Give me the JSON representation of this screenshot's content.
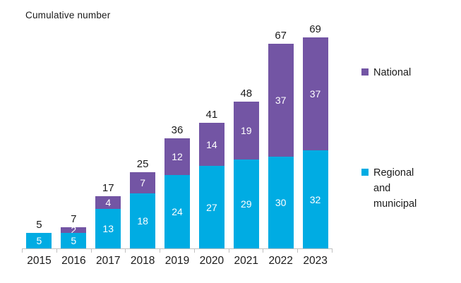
{
  "title": "Cumulative number",
  "colors": {
    "national": "#7355a4",
    "regional": "#00ace3",
    "axis": "#c0c0c0",
    "bar_label": "#ffffff",
    "text": "#1a1a1a"
  },
  "legend": [
    {
      "label": "National",
      "color_key": "national"
    },
    {
      "label": "Regional and municipal",
      "color_key": "regional"
    }
  ],
  "chart_data": {
    "type": "bar",
    "stacked": true,
    "title": "Cumulative number",
    "categories": [
      "2015",
      "2016",
      "2017",
      "2018",
      "2019",
      "2020",
      "2021",
      "2022",
      "2023"
    ],
    "series": [
      {
        "name": "Regional and municipal",
        "color_key": "regional",
        "values": [
          5,
          5,
          13,
          18,
          24,
          27,
          29,
          30,
          32
        ]
      },
      {
        "name": "National",
        "color_key": "national",
        "values": [
          0,
          2,
          4,
          7,
          12,
          14,
          19,
          37,
          37
        ]
      }
    ],
    "totals": [
      5,
      7,
      17,
      25,
      36,
      41,
      48,
      67,
      69
    ],
    "xlabel": "",
    "ylabel": "",
    "ylim": [
      0,
      69
    ],
    "grid": false,
    "legend_position": "right",
    "value_labels": "inside-segments-and-total-above"
  }
}
